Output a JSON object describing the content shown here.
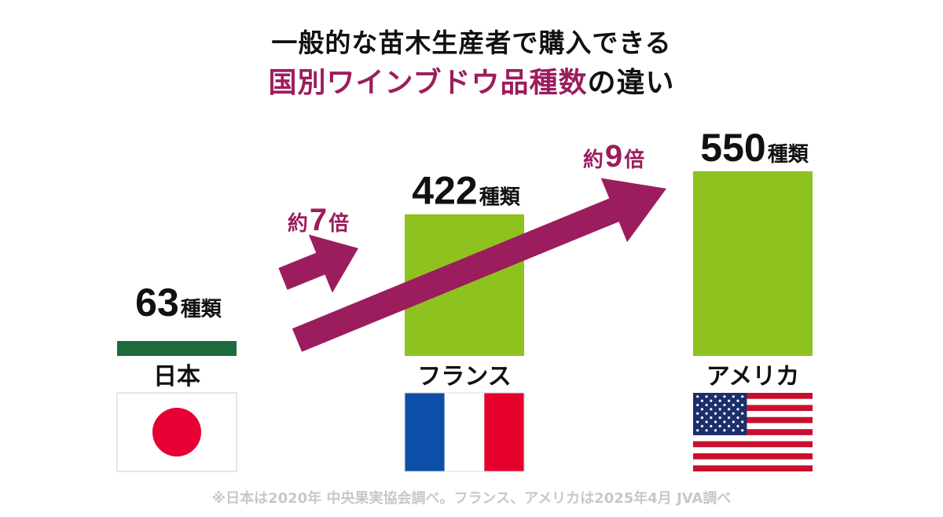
{
  "title_line1": "一般的な苗木生産者で購入できる",
  "title_line2_highlight": "国別ワインブドウ品種数",
  "title_line2_rest": "の違い",
  "colors": {
    "bar": "#8dc21f",
    "japan_bar": "#1d6a3c",
    "arrow": "#9b1d5d",
    "accent_text": "#9b1d5d"
  },
  "unit": "種類",
  "chart_data": {
    "type": "bar",
    "categories": [
      "日本",
      "フランス",
      "アメリカ"
    ],
    "values": [
      63,
      422,
      550
    ],
    "value_labels": [
      "63",
      "422",
      "550"
    ],
    "ratios": [
      {
        "prefix": "約",
        "number": "7",
        "suffix": "倍",
        "from": "日本",
        "to": "フランス"
      },
      {
        "prefix": "約",
        "number": "9",
        "suffix": "倍",
        "from": "日本",
        "to": "アメリカ"
      }
    ],
    "flags": [
      "japan-flag",
      "france-flag",
      "usa-flag"
    ],
    "ylim": [
      0,
      600
    ]
  },
  "footnote": "※日本は2020年 中央果実協会調べ。フランス、アメリカは2025年4月 JVA調べ"
}
